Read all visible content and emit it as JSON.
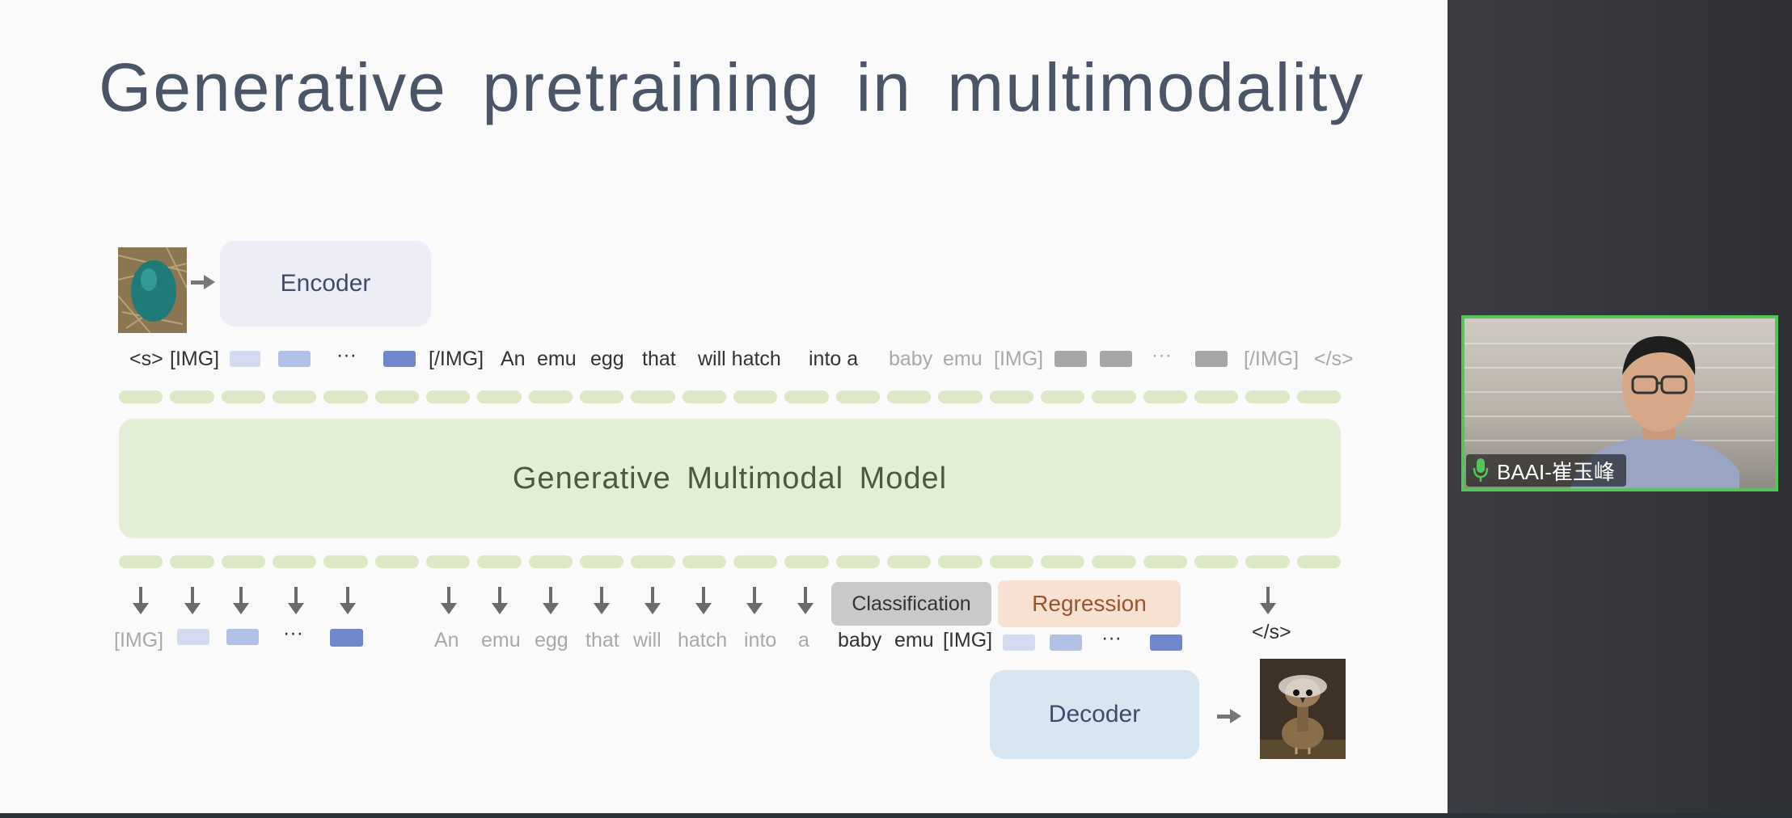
{
  "slide": {
    "title": "Generative pretraining in multimodality",
    "encoder_label": "Encoder",
    "model_label": "Generative Multimodal Model",
    "decoder_label": "Decoder",
    "classification_label": "Classification",
    "regression_label": "Regression",
    "input_tokens": {
      "start": "<s>",
      "img_open_1": "[IMG]",
      "dots_1": "···",
      "img_close_1": "[/IMG]",
      "text_black": [
        "An",
        "emu",
        "egg",
        "that",
        "will hatch",
        "into a"
      ],
      "text_gray": [
        "baby",
        "emu"
      ],
      "img_open_2": "[IMG]",
      "dots_2": "···",
      "img_close_2": "[/IMG]",
      "end": "</s>"
    },
    "output_tokens": {
      "img_open": "[IMG]",
      "dots_1": "···",
      "text_gray": [
        "An",
        "emu",
        "egg",
        "that",
        "will",
        "hatch",
        "into",
        "a"
      ],
      "text_black": [
        "baby",
        "emu",
        "[IMG]"
      ],
      "dots_2": "···",
      "end": "</s>"
    },
    "colors": {
      "light_blue": "#d3dcef",
      "mid_blue": "#b2c0e6",
      "dark_blue": "#6f88cc",
      "gray_token": "#a6a6a6",
      "pill_green": "#dde8c6",
      "model_green": "#e3eed6",
      "encoder_bg": "#ededf5",
      "decoder_bg": "#d7e6f1",
      "classification_bg": "#c9c9c9",
      "regression_bg": "#f6e1d2"
    }
  },
  "video": {
    "participant_name": "BAAI-崔玉峰",
    "mic_icon": "microphone-icon",
    "border_color": "#55c45a"
  }
}
